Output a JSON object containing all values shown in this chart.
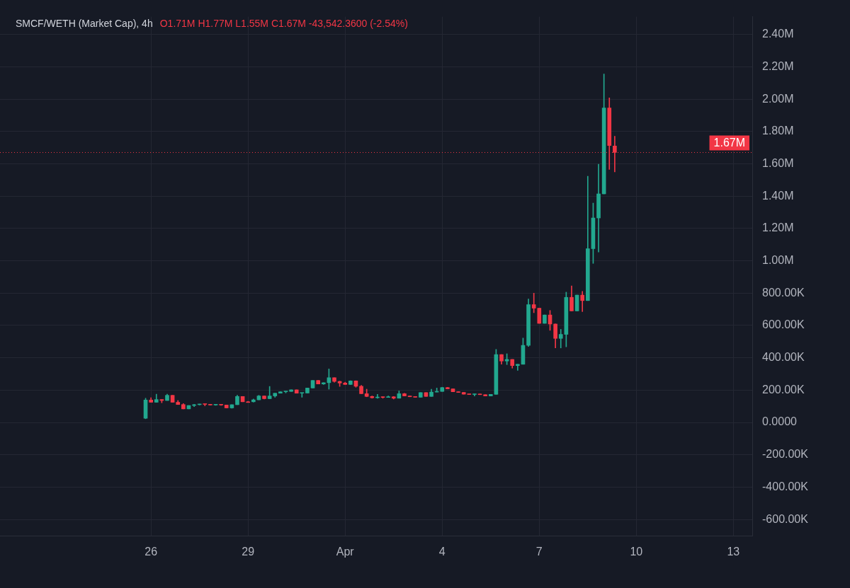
{
  "chart_data": {
    "type": "candlestick",
    "title": "SMCF/WETH (Market Cap), 4h",
    "annotations": [
      "O1.71M H1.77M L1.55M C1.67M -43,542.3600 (-2.54%)"
    ],
    "x": [
      "--03-25T20:00",
      "--03-26T00:00",
      "--03-26T04:00",
      "--03-26T08:00",
      "--03-26T12:00",
      "--03-26T16:00",
      "--03-26T20:00",
      "--03-27T00:00",
      "--03-27T04:00",
      "--03-27T08:00",
      "--03-27T12:00",
      "--03-27T16:00",
      "--03-27T20:00",
      "--03-28T00:00",
      "--03-28T04:00",
      "--03-28T08:00",
      "--03-28T12:00",
      "--03-28T16:00",
      "--03-28T20:00",
      "--03-29T00:00",
      "--03-29T04:00",
      "--03-29T08:00",
      "--03-29T12:00",
      "--03-29T16:00",
      "--03-29T20:00",
      "--03-30T00:00",
      "--03-30T04:00",
      "--03-30T08:00",
      "--03-30T12:00",
      "--03-30T16:00",
      "--03-30T20:00",
      "--03-31T00:00",
      "--03-31T04:00",
      "--03-31T08:00",
      "--03-31T12:00",
      "--03-31T16:00",
      "--03-31T20:00",
      "--04-01T00:00",
      "--04-01T04:00",
      "--04-01T08:00",
      "--04-01T12:00",
      "--04-01T16:00",
      "--04-01T20:00",
      "--04-02T00:00",
      "--04-02T04:00",
      "--04-02T08:00",
      "--04-02T12:00",
      "--04-02T16:00",
      "--04-02T20:00",
      "--04-03T00:00",
      "--04-03T04:00",
      "--04-03T08:00",
      "--04-03T12:00",
      "--04-03T16:00",
      "--04-03T20:00",
      "--04-04T00:00",
      "--04-04T04:00",
      "--04-04T08:00",
      "--04-04T12:00",
      "--04-04T16:00",
      "--04-04T20:00",
      "--04-05T00:00",
      "--04-05T04:00",
      "--04-05T08:00",
      "--04-05T12:00",
      "--04-05T16:00",
      "--04-05T20:00",
      "--04-06T00:00",
      "--04-06T04:00",
      "--04-06T08:00",
      "--04-06T12:00",
      "--04-06T16:00",
      "--04-06T20:00",
      "--04-07T00:00",
      "--04-07T04:00",
      "--04-07T08:00",
      "--04-07T12:00",
      "--04-07T16:00",
      "--04-07T20:00",
      "--04-08T00:00",
      "--04-08T04:00",
      "--04-08T08:00",
      "--04-08T12:00",
      "--04-08T16:00",
      "--04-08T20:00",
      "--04-09T00:00",
      "--04-09T04:00",
      "--04-09T08:00"
    ],
    "ohlc": [
      [
        26000,
        150000,
        23000,
        139000
      ],
      [
        139000,
        153000,
        125000,
        125000
      ],
      [
        125000,
        175000,
        125000,
        142000
      ],
      [
        142000,
        142000,
        122000,
        136000
      ],
      [
        136000,
        175000,
        136000,
        168000
      ],
      [
        168000,
        168000,
        125000,
        125000
      ],
      [
        125000,
        136000,
        111000,
        111000
      ],
      [
        111000,
        117000,
        84000,
        84000
      ],
      [
        84000,
        105000,
        84000,
        105000
      ],
      [
        105000,
        113000,
        98000,
        110000
      ],
      [
        110000,
        114000,
        108000,
        113000
      ],
      [
        113000,
        113000,
        103000,
        112000
      ],
      [
        112000,
        112000,
        108000,
        108000
      ],
      [
        108000,
        110000,
        106000,
        110000
      ],
      [
        110000,
        110000,
        106000,
        108000
      ],
      [
        108000,
        108000,
        90000,
        90000
      ],
      [
        90000,
        110000,
        88000,
        110000
      ],
      [
        110000,
        169000,
        110000,
        161000
      ],
      [
        161000,
        161000,
        128000,
        128000
      ],
      [
        128000,
        131000,
        126000,
        128000
      ],
      [
        128000,
        145000,
        126000,
        140000
      ],
      [
        140000,
        168000,
        140000,
        164000
      ],
      [
        164000,
        164000,
        145000,
        147000
      ],
      [
        147000,
        223000,
        147000,
        164000
      ],
      [
        164000,
        181000,
        156000,
        181000
      ],
      [
        181000,
        190000,
        181000,
        190000
      ],
      [
        190000,
        192000,
        183000,
        192000
      ],
      [
        192000,
        202000,
        192000,
        202000
      ],
      [
        202000,
        202000,
        181000,
        181000
      ],
      [
        181000,
        182000,
        156000,
        182000
      ],
      [
        182000,
        213000,
        182000,
        213000
      ],
      [
        213000,
        260000,
        213000,
        260000
      ],
      [
        260000,
        260000,
        238000,
        238000
      ],
      [
        238000,
        246000,
        235000,
        246000
      ],
      [
        246000,
        331000,
        206000,
        277000
      ],
      [
        277000,
        277000,
        249000,
        254000
      ],
      [
        254000,
        256000,
        223000,
        244000
      ],
      [
        244000,
        249000,
        235000,
        235000
      ],
      [
        235000,
        258000,
        235000,
        257000
      ],
      [
        257000,
        258000,
        218000,
        224000
      ],
      [
        224000,
        230000,
        178000,
        178000
      ],
      [
        178000,
        206000,
        159000,
        161000
      ],
      [
        161000,
        164000,
        150000,
        153000
      ],
      [
        153000,
        174000,
        150000,
        157000
      ],
      [
        157000,
        159000,
        150000,
        155000
      ],
      [
        155000,
        164000,
        155000,
        159000
      ],
      [
        159000,
        161000,
        145000,
        150000
      ],
      [
        150000,
        195000,
        150000,
        178000
      ],
      [
        178000,
        180000,
        164000,
        164000
      ],
      [
        164000,
        164000,
        159000,
        159000
      ],
      [
        159000,
        159000,
        156000,
        156000
      ],
      [
        156000,
        185000,
        156000,
        185000
      ],
      [
        185000,
        185000,
        161000,
        161000
      ],
      [
        161000,
        206000,
        161000,
        188000
      ],
      [
        188000,
        213000,
        188000,
        192000
      ],
      [
        192000,
        218000,
        192000,
        216000
      ],
      [
        216000,
        218000,
        208000,
        208000
      ],
      [
        208000,
        208000,
        190000,
        190000
      ],
      [
        190000,
        190000,
        186000,
        186000
      ],
      [
        186000,
        186000,
        175000,
        175000
      ],
      [
        175000,
        175000,
        173000,
        173000
      ],
      [
        173000,
        176000,
        164000,
        176000
      ],
      [
        176000,
        176000,
        172000,
        172000
      ],
      [
        172000,
        172000,
        164000,
        164000
      ],
      [
        164000,
        174000,
        164000,
        174000
      ],
      [
        174000,
        452000,
        174000,
        420000
      ],
      [
        420000,
        420000,
        361000,
        380000
      ],
      [
        380000,
        425000,
        358000,
        390000
      ],
      [
        390000,
        390000,
        336000,
        352000
      ],
      [
        352000,
        360000,
        322000,
        360000
      ],
      [
        360000,
        522000,
        360000,
        477000
      ],
      [
        477000,
        764000,
        470000,
        729000
      ],
      [
        729000,
        800000,
        679000,
        707000
      ],
      [
        707000,
        707000,
        613000,
        613000
      ],
      [
        613000,
        665000,
        613000,
        665000
      ],
      [
        665000,
        693000,
        570000,
        609000
      ],
      [
        609000,
        609000,
        461000,
        520000
      ],
      [
        520000,
        576000,
        461000,
        545000
      ],
      [
        545000,
        806000,
        468000,
        774000
      ],
      [
        774000,
        845000,
        690000,
        690000
      ],
      [
        690000,
        788000,
        690000,
        788000
      ],
      [
        788000,
        811000,
        686000,
        754000
      ],
      [
        754000,
        1523000,
        754000,
        1075000
      ],
      [
        1075000,
        1357000,
        984000,
        1265000
      ],
      [
        1265000,
        1598000,
        1054000,
        1414000
      ],
      [
        1414000,
        2156000,
        1414000,
        1946000
      ],
      [
        1946000,
        2008000,
        1565000,
        1713000
      ],
      [
        1710000,
        1770000,
        1550000,
        1670000
      ]
    ],
    "colors": [
      "#22a88f",
      "#f23645",
      "#22a88f",
      "#f23645",
      "#22a88f",
      "#f23645",
      "#f23645",
      "#f23645",
      "#22a88f",
      "#22a88f",
      "#22a88f",
      "#f23645",
      "#f23645",
      "#22a88f",
      "#f23645",
      "#f23645",
      "#22a88f",
      "#22a88f",
      "#f23645",
      "#f23645",
      "#22a88f",
      "#22a88f",
      "#f23645",
      "#22a88f",
      "#22a88f",
      "#22a88f",
      "#22a88f",
      "#22a88f",
      "#f23645",
      "#22a88f",
      "#22a88f",
      "#22a88f",
      "#f23645",
      "#22a88f",
      "#22a88f",
      "#f23645",
      "#f23645",
      "#f23645",
      "#22a88f",
      "#f23645",
      "#f23645",
      "#f23645",
      "#f23645",
      "#22a88f",
      "#f23645",
      "#22a88f",
      "#f23645",
      "#22a88f",
      "#f23645",
      "#f23645",
      "#f23645",
      "#22a88f",
      "#f23645",
      "#22a88f",
      "#22a88f",
      "#22a88f",
      "#f23645",
      "#f23645",
      "#f23645",
      "#f23645",
      "#f23645",
      "#22a88f",
      "#f23645",
      "#f23645",
      "#22a88f",
      "#22a88f",
      "#f23645",
      "#22a88f",
      "#f23645",
      "#22a88f",
      "#22a88f",
      "#22a88f",
      "#f23645",
      "#f23645",
      "#22a88f",
      "#f23645",
      "#f23645",
      "#22a88f",
      "#22a88f",
      "#f23645",
      "#22a88f",
      "#f23645",
      "#22a88f",
      "#22a88f",
      "#22a88f",
      "#22a88f",
      "#f23645",
      "#f23645"
    ],
    "xlim": [
      "--03-21T08:00",
      "--04-13T14:00"
    ],
    "xticks": [
      {
        "value": "--03-26",
        "label": "26"
      },
      {
        "value": "--03-29",
        "label": "29"
      },
      {
        "value": "--04-01",
        "label": "Apr"
      },
      {
        "value": "--04-04",
        "label": "4"
      },
      {
        "value": "--04-07",
        "label": "7"
      },
      {
        "value": "--04-10",
        "label": "10"
      },
      {
        "value": "--04-13",
        "label": "13"
      }
    ],
    "ylim": [
      -700000,
      2510000
    ],
    "yticks": [
      {
        "value": -600000,
        "label": "-600.00K"
      },
      {
        "value": -400000,
        "label": "-400.00K"
      },
      {
        "value": -200000,
        "label": "-200.00K"
      },
      {
        "value": 0,
        "label": "0.0000"
      },
      {
        "value": 200000,
        "label": "200.00K"
      },
      {
        "value": 400000,
        "label": "400.00K"
      },
      {
        "value": 600000,
        "label": "600.00K"
      },
      {
        "value": 800000,
        "label": "800.00K"
      },
      {
        "value": 1000000,
        "label": "1.00M"
      },
      {
        "value": 1200000,
        "label": "1.20M"
      },
      {
        "value": 1400000,
        "label": "1.40M"
      },
      {
        "value": 1600000,
        "label": "1.60M"
      },
      {
        "value": 1800000,
        "label": "1.80M"
      },
      {
        "value": 2000000,
        "label": "2.00M"
      },
      {
        "value": 2200000,
        "label": "2.20M"
      },
      {
        "value": 2400000,
        "label": "2.40M"
      }
    ],
    "ref_lines": [
      {
        "axis": "y",
        "value": 1670000,
        "label": "1.67M",
        "color": "#f23645",
        "line_style": "dotted"
      }
    ],
    "grid": true,
    "legend": false
  }
}
